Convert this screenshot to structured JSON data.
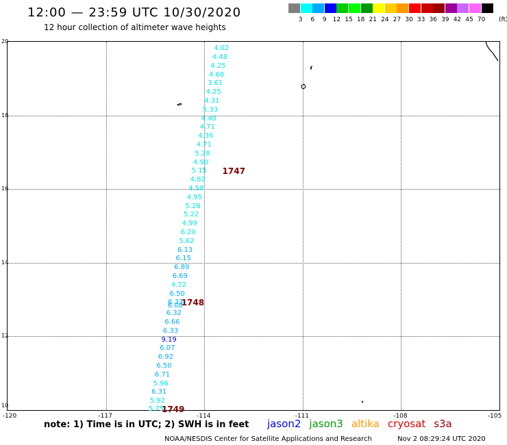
{
  "title": "12:00 — 23:59 UTC 10/30/2020",
  "subtitle": "12 hour collection of altimeter wave heights",
  "scale": {
    "unit_label": "(ft)",
    "colors": [
      "#808080",
      "#00ffff",
      "#00aaff",
      "#0000ff",
      "#00cc00",
      "#00ff00",
      "#009900",
      "#ffff00",
      "#ffcc00",
      "#ff9900",
      "#ff0000",
      "#cc0000",
      "#990000",
      "#990099",
      "#cc66ff",
      "#ff66ff",
      "#000000"
    ],
    "labels": [
      "3",
      "6",
      "9",
      "12",
      "15",
      "18",
      "21",
      "24",
      "27",
      "30",
      "33",
      "36",
      "39",
      "42",
      "45",
      "70"
    ]
  },
  "map": {
    "y_ticks": [
      "20",
      "18",
      "16",
      "14",
      "12",
      "10"
    ],
    "x_ticks": [
      "-120",
      "-117",
      "-114",
      "-111",
      "-108",
      "-105"
    ]
  },
  "observations": [
    {
      "v": "4.02",
      "lon": -113.71,
      "lat": 19.81,
      "c": "#00e5e5"
    },
    {
      "v": "4.48",
      "lon": -113.76,
      "lat": 19.57,
      "c": "#00e5e5"
    },
    {
      "v": "4.25",
      "lon": -113.81,
      "lat": 19.33,
      "c": "#00e5e5"
    },
    {
      "v": "4.68",
      "lon": -113.86,
      "lat": 19.09,
      "c": "#00e5e5"
    },
    {
      "v": "3.61",
      "lon": -113.9,
      "lat": 18.86,
      "c": "#00e5e5"
    },
    {
      "v": "4.25",
      "lon": -113.95,
      "lat": 18.62,
      "c": "#00e5e5"
    },
    {
      "v": "4.31",
      "lon": -114.0,
      "lat": 18.38,
      "c": "#00e5e5"
    },
    {
      "v": "5.33",
      "lon": -114.05,
      "lat": 18.14,
      "c": "#00e5e5"
    },
    {
      "v": "4.40",
      "lon": -114.1,
      "lat": 17.9,
      "c": "#00e5e5"
    },
    {
      "v": "4.71",
      "lon": -114.14,
      "lat": 17.67,
      "c": "#00e5e5"
    },
    {
      "v": "4.36",
      "lon": -114.19,
      "lat": 17.43,
      "c": "#00e5e5"
    },
    {
      "v": "4.71",
      "lon": -114.24,
      "lat": 17.19,
      "c": "#00e5e5"
    },
    {
      "v": "5.28",
      "lon": -114.29,
      "lat": 16.95,
      "c": "#00e5e5"
    },
    {
      "v": "4.90",
      "lon": -114.34,
      "lat": 16.71,
      "c": "#00e5e5"
    },
    {
      "v": "5.15",
      "lon": -114.39,
      "lat": 16.48,
      "c": "#00e5e5"
    },
    {
      "v": "4.82",
      "lon": -114.43,
      "lat": 16.24,
      "c": "#00e5e5"
    },
    {
      "v": "4.58",
      "lon": -114.48,
      "lat": 16.0,
      "c": "#00e5e5"
    },
    {
      "v": "4.95",
      "lon": -114.53,
      "lat": 15.76,
      "c": "#00e5e5"
    },
    {
      "v": "5.28",
      "lon": -114.58,
      "lat": 15.52,
      "c": "#00e5e5"
    },
    {
      "v": "5.22",
      "lon": -114.63,
      "lat": 15.29,
      "c": "#00e5e5"
    },
    {
      "v": "4.99",
      "lon": -114.68,
      "lat": 15.05,
      "c": "#00e5e5"
    },
    {
      "v": "6.20",
      "lon": -114.72,
      "lat": 14.81,
      "c": "#00e5e5"
    },
    {
      "v": "5.62",
      "lon": -114.77,
      "lat": 14.57,
      "c": "#00e5e5"
    },
    {
      "v": "6.13",
      "lon": -114.82,
      "lat": 14.33,
      "c": "#00aaff"
    },
    {
      "v": "6.15",
      "lon": -114.87,
      "lat": 14.1,
      "c": "#00aaff"
    },
    {
      "v": "6.89",
      "lon": -114.92,
      "lat": 13.86,
      "c": "#00aaff"
    },
    {
      "v": "6.69",
      "lon": -114.97,
      "lat": 13.62,
      "c": "#00aaff"
    },
    {
      "v": "4.72",
      "lon": -115.01,
      "lat": 13.38,
      "c": "#00e5e5"
    },
    {
      "v": "6.50",
      "lon": -115.06,
      "lat": 13.14,
      "c": "#00aaff"
    },
    {
      "v": "6.33",
      "lon": -115.11,
      "lat": 12.91,
      "c": "#00aaff"
    },
    {
      "v": "6.08",
      "lon": -115.12,
      "lat": 12.82,
      "c": "#00aaff"
    },
    {
      "v": "6.32",
      "lon": -115.16,
      "lat": 12.62,
      "c": "#00aaff"
    },
    {
      "v": "6.66",
      "lon": -115.21,
      "lat": 12.38,
      "c": "#00aaff"
    },
    {
      "v": "6.33",
      "lon": -115.26,
      "lat": 12.14,
      "c": "#00aaff"
    },
    {
      "v": "9.19",
      "lon": -115.31,
      "lat": 11.9,
      "c": "#0000ff"
    },
    {
      "v": "6.07",
      "lon": -115.36,
      "lat": 11.67,
      "c": "#00aaff"
    },
    {
      "v": "6.92",
      "lon": -115.41,
      "lat": 11.43,
      "c": "#00aaff"
    },
    {
      "v": "6.50",
      "lon": -115.46,
      "lat": 11.19,
      "c": "#00aaff"
    },
    {
      "v": "6.71",
      "lon": -115.51,
      "lat": 10.95,
      "c": "#00aaff"
    },
    {
      "v": "5.96",
      "lon": -115.56,
      "lat": 10.71,
      "c": "#00e5e5"
    },
    {
      "v": "6.31",
      "lon": -115.61,
      "lat": 10.48,
      "c": "#00aaff"
    },
    {
      "v": "5.92",
      "lon": -115.66,
      "lat": 10.24,
      "c": "#00e5e5"
    },
    {
      "v": "5.75",
      "lon": -115.7,
      "lat": 10.02,
      "c": "#00e5e5"
    }
  ],
  "passes": [
    {
      "label": "1747",
      "lon": -113.45,
      "lat": 16.48
    },
    {
      "label": "1748",
      "lon": -114.7,
      "lat": 12.91
    },
    {
      "label": "1749",
      "lon": -115.3,
      "lat": 10.02
    }
  ],
  "note": "note: 1) Time is in UTC; 2) SWH is in feet",
  "legend": [
    {
      "name": "jason2",
      "color": "#0000ee"
    },
    {
      "name": "jason3",
      "color": "#009900"
    },
    {
      "name": "altika",
      "color": "#ff9900"
    },
    {
      "name": "cryosat",
      "color": "#dd0000"
    },
    {
      "name": "s3a",
      "color": "#990000"
    }
  ],
  "credit": "NOAA/NESDIS Center for Satellite Applications and Research",
  "timestamp": "Nov  2 08:29:24 UTC 2020"
}
